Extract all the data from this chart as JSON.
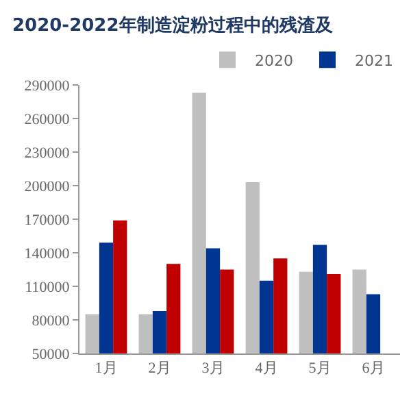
{
  "chart_data": {
    "type": "bar",
    "title": "2020-2022年制造淀粉过程中的残渣及",
    "categories": [
      "1月",
      "2月",
      "3月",
      "4月",
      "5月",
      "6月"
    ],
    "series": [
      {
        "name": "2020",
        "color": "#bfbfbf",
        "values": [
          85000,
          85000,
          283000,
          203000,
          123000,
          125000
        ]
      },
      {
        "name": "2021",
        "color": "#003591",
        "values": [
          149000,
          88000,
          144000,
          115000,
          147000,
          103000
        ]
      },
      {
        "color": "#c00000",
        "values": [
          169000,
          130000,
          125000,
          135000,
          121000,
          null
        ]
      }
    ],
    "ylim": [
      50000,
      290000
    ],
    "yticks": [
      50000,
      80000,
      110000,
      140000,
      170000,
      200000,
      230000,
      260000,
      290000
    ],
    "grid": false,
    "legend": "top right"
  }
}
